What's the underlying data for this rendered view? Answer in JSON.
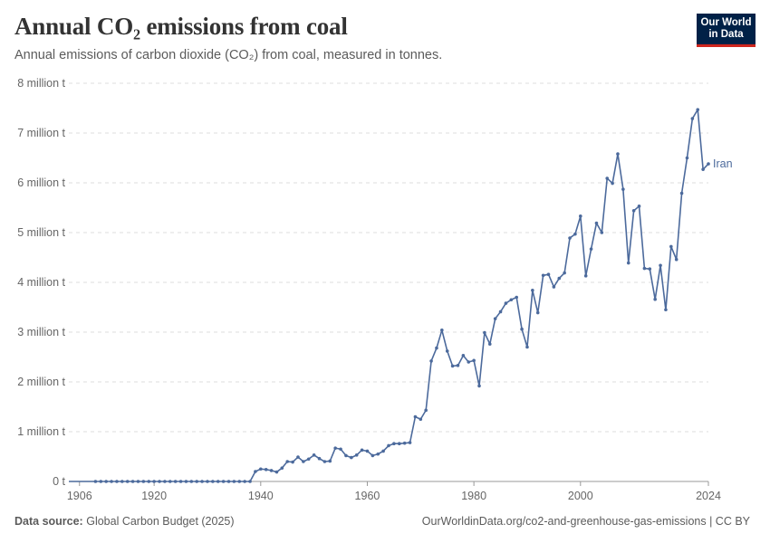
{
  "header": {
    "title": "Annual CO₂ emissions from coal",
    "subtitle": "Annual emissions of carbon dioxide (CO₂) from coal, measured in tonnes.",
    "logo_line1": "Our World",
    "logo_line2": "in Data"
  },
  "footer": {
    "source_label": "Data source:",
    "source_value": "Global Carbon Budget (2025)",
    "credit": "OurWorldinData.org/co2-and-greenhouse-gas-emissions | CC BY"
  },
  "colors": {
    "series": "#4c6a9c",
    "grid": "#dddddd",
    "axis": "#666666",
    "logo_bg": "#002147",
    "logo_accent": "#ce261e"
  },
  "chart_data": {
    "type": "line",
    "title": "Annual CO₂ emissions from coal",
    "xlabel": "",
    "ylabel": "",
    "xlim": [
      1904,
      2024
    ],
    "ylim": [
      0,
      8000000
    ],
    "x_ticks": [
      {
        "value": 1906,
        "label": "1906"
      },
      {
        "value": 1920,
        "label": "1920"
      },
      {
        "value": 1940,
        "label": "1940"
      },
      {
        "value": 1960,
        "label": "1960"
      },
      {
        "value": 1980,
        "label": "1980"
      },
      {
        "value": 2000,
        "label": "2000"
      },
      {
        "value": 2024,
        "label": "2024"
      }
    ],
    "y_ticks": [
      {
        "value": 0,
        "label": "0 t"
      },
      {
        "value": 1000000,
        "label": "1 million t"
      },
      {
        "value": 2000000,
        "label": "2 million t"
      },
      {
        "value": 3000000,
        "label": "3 million t"
      },
      {
        "value": 4000000,
        "label": "4 million t"
      },
      {
        "value": 5000000,
        "label": "5 million t"
      },
      {
        "value": 6000000,
        "label": "6 million t"
      },
      {
        "value": 7000000,
        "label": "7 million t"
      },
      {
        "value": 8000000,
        "label": "8 million t"
      }
    ],
    "grid": true,
    "legend_position": "right-end-label",
    "series": [
      {
        "name": "Iran",
        "points": [
          [
            1904,
            0
          ],
          [
            1909,
            0
          ],
          [
            1910,
            0
          ],
          [
            1911,
            0
          ],
          [
            1912,
            0
          ],
          [
            1913,
            0
          ],
          [
            1914,
            0
          ],
          [
            1915,
            0
          ],
          [
            1916,
            0
          ],
          [
            1917,
            0
          ],
          [
            1918,
            0
          ],
          [
            1919,
            0
          ],
          [
            1920,
            0
          ],
          [
            1921,
            0
          ],
          [
            1922,
            0
          ],
          [
            1923,
            0
          ],
          [
            1924,
            0
          ],
          [
            1925,
            0
          ],
          [
            1926,
            0
          ],
          [
            1927,
            0
          ],
          [
            1928,
            0
          ],
          [
            1929,
            0
          ],
          [
            1930,
            0
          ],
          [
            1931,
            0
          ],
          [
            1932,
            0
          ],
          [
            1933,
            0
          ],
          [
            1934,
            0
          ],
          [
            1935,
            0
          ],
          [
            1936,
            0
          ],
          [
            1937,
            0
          ],
          [
            1938,
            0
          ],
          [
            1939,
            200000
          ],
          [
            1940,
            250000
          ],
          [
            1941,
            240000
          ],
          [
            1942,
            220000
          ],
          [
            1943,
            190000
          ],
          [
            1944,
            270000
          ],
          [
            1945,
            400000
          ],
          [
            1946,
            390000
          ],
          [
            1947,
            490000
          ],
          [
            1948,
            400000
          ],
          [
            1949,
            450000
          ],
          [
            1950,
            530000
          ],
          [
            1951,
            460000
          ],
          [
            1952,
            400000
          ],
          [
            1953,
            410000
          ],
          [
            1954,
            670000
          ],
          [
            1955,
            650000
          ],
          [
            1956,
            520000
          ],
          [
            1957,
            480000
          ],
          [
            1958,
            530000
          ],
          [
            1959,
            630000
          ],
          [
            1960,
            610000
          ],
          [
            1961,
            520000
          ],
          [
            1962,
            550000
          ],
          [
            1963,
            610000
          ],
          [
            1964,
            720000
          ],
          [
            1965,
            760000
          ],
          [
            1966,
            760000
          ],
          [
            1967,
            770000
          ],
          [
            1968,
            780000
          ],
          [
            1969,
            1300000
          ],
          [
            1970,
            1250000
          ],
          [
            1971,
            1430000
          ],
          [
            1972,
            2420000
          ],
          [
            1973,
            2680000
          ],
          [
            1974,
            3040000
          ],
          [
            1975,
            2620000
          ],
          [
            1976,
            2320000
          ],
          [
            1977,
            2330000
          ],
          [
            1978,
            2530000
          ],
          [
            1979,
            2400000
          ],
          [
            1980,
            2430000
          ],
          [
            1981,
            1920000
          ],
          [
            1982,
            2990000
          ],
          [
            1983,
            2760000
          ],
          [
            1984,
            3270000
          ],
          [
            1985,
            3410000
          ],
          [
            1986,
            3580000
          ],
          [
            1987,
            3650000
          ],
          [
            1988,
            3700000
          ],
          [
            1989,
            3060000
          ],
          [
            1990,
            2700000
          ],
          [
            1991,
            3840000
          ],
          [
            1992,
            3390000
          ],
          [
            1993,
            4140000
          ],
          [
            1994,
            4160000
          ],
          [
            1995,
            3910000
          ],
          [
            1996,
            4080000
          ],
          [
            1997,
            4190000
          ],
          [
            1998,
            4890000
          ],
          [
            1999,
            4970000
          ],
          [
            2000,
            5330000
          ],
          [
            2001,
            4130000
          ],
          [
            2002,
            4670000
          ],
          [
            2003,
            5190000
          ],
          [
            2004,
            5000000
          ],
          [
            2005,
            6090000
          ],
          [
            2006,
            5990000
          ],
          [
            2007,
            6580000
          ],
          [
            2008,
            5870000
          ],
          [
            2009,
            4390000
          ],
          [
            2010,
            5440000
          ],
          [
            2011,
            5530000
          ],
          [
            2012,
            4280000
          ],
          [
            2013,
            4270000
          ],
          [
            2014,
            3660000
          ],
          [
            2015,
            4340000
          ],
          [
            2016,
            3450000
          ],
          [
            2017,
            4720000
          ],
          [
            2018,
            4460000
          ],
          [
            2019,
            5790000
          ],
          [
            2020,
            6500000
          ],
          [
            2021,
            7290000
          ],
          [
            2022,
            7470000
          ],
          [
            2023,
            6270000
          ],
          [
            2024,
            6380000
          ]
        ]
      }
    ]
  }
}
